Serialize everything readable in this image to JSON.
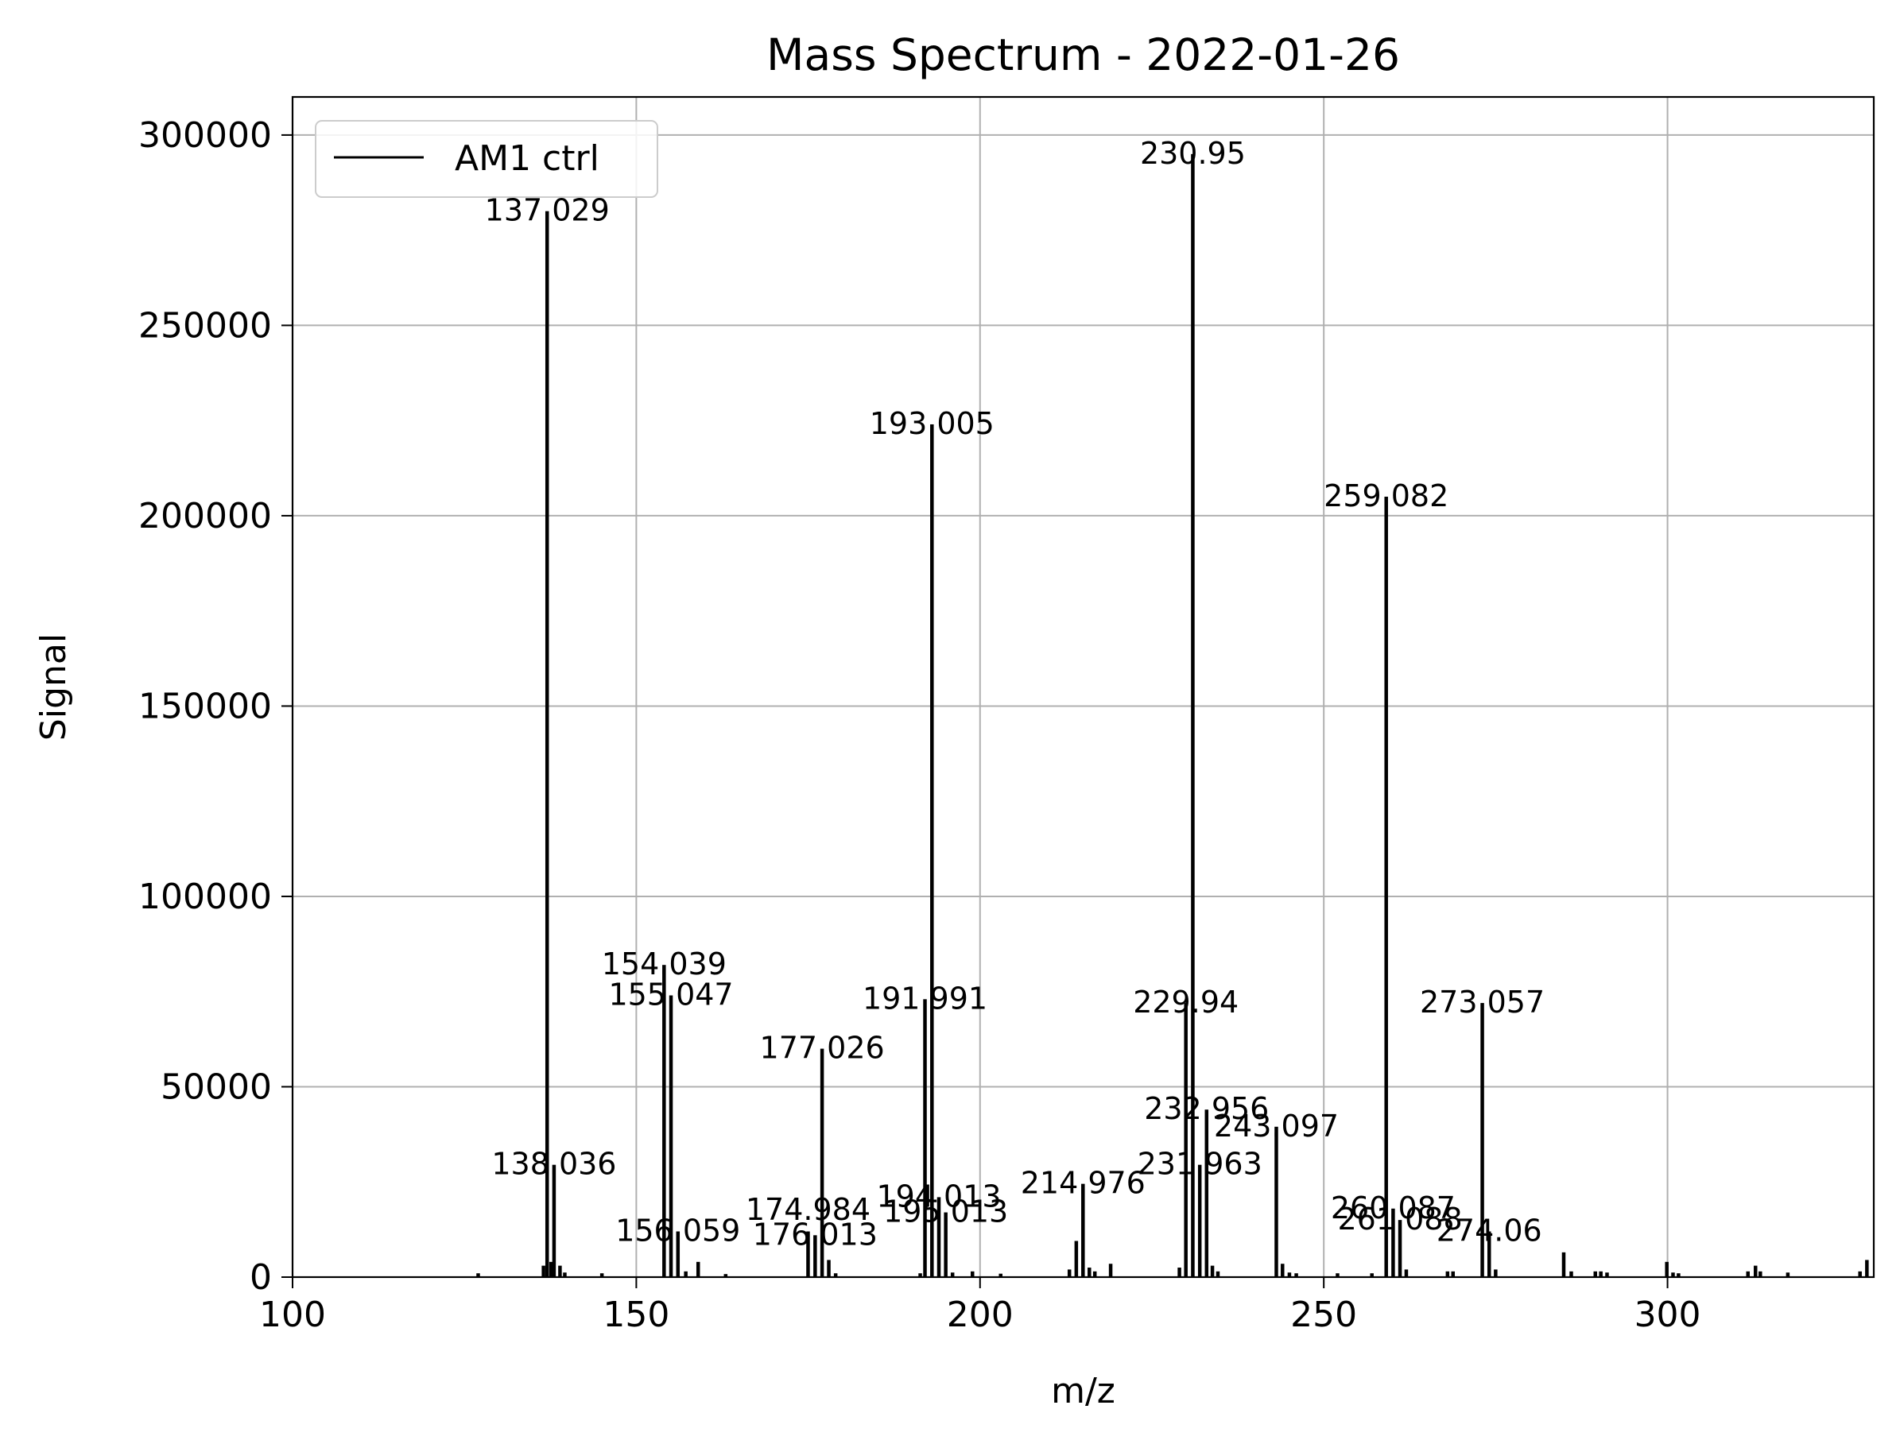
{
  "chart_data": {
    "type": "bar",
    "title": "Mass Spectrum - 2022-01-26",
    "xlabel": "m/z",
    "ylabel": "Signal",
    "xlim": [
      100,
      330
    ],
    "ylim": [
      0,
      310000
    ],
    "xticks": [
      100,
      150,
      200,
      250,
      300
    ],
    "yticks": [
      0,
      50000,
      100000,
      150000,
      200000,
      250000,
      300000
    ],
    "grid": true,
    "legend_position": "top-left",
    "series": [
      {
        "name": "AM1 ctrl",
        "color": "#000000",
        "peaks": [
          [
            127.0,
            1000
          ],
          [
            136.5,
            3000
          ],
          [
            137.029,
            280000
          ],
          [
            137.6,
            4000
          ],
          [
            138.036,
            29500
          ],
          [
            138.9,
            3000
          ],
          [
            139.6,
            1200
          ],
          [
            145.0,
            1000
          ],
          [
            154.039,
            82000
          ],
          [
            155.047,
            74000
          ],
          [
            156.059,
            12000
          ],
          [
            157.2,
            1500
          ],
          [
            159.0,
            4000
          ],
          [
            163.0,
            800
          ],
          [
            174.984,
            12000
          ],
          [
            176.013,
            11000
          ],
          [
            177.026,
            60000
          ],
          [
            178.0,
            4500
          ],
          [
            179.0,
            1000
          ],
          [
            191.3,
            1000
          ],
          [
            191.991,
            73000
          ],
          [
            193.005,
            224000
          ],
          [
            194.013,
            21000
          ],
          [
            195.013,
            17000
          ],
          [
            196.0,
            1200
          ],
          [
            198.9,
            1500
          ],
          [
            203.0,
            900
          ],
          [
            213.0,
            2000
          ],
          [
            214.0,
            9500
          ],
          [
            214.976,
            24500
          ],
          [
            215.9,
            2500
          ],
          [
            216.7,
            1500
          ],
          [
            219.0,
            3500
          ],
          [
            229.0,
            2500
          ],
          [
            229.94,
            72000
          ],
          [
            230.95,
            295000
          ],
          [
            231.963,
            29500
          ],
          [
            232.956,
            44000
          ],
          [
            233.8,
            3000
          ],
          [
            234.6,
            1500
          ],
          [
            243.097,
            39500
          ],
          [
            244.0,
            3500
          ],
          [
            245.0,
            1200
          ],
          [
            246.0,
            1000
          ],
          [
            252.0,
            1000
          ],
          [
            257.0,
            1000
          ],
          [
            259.082,
            205000
          ],
          [
            260.087,
            18000
          ],
          [
            261.088,
            15000
          ],
          [
            262.0,
            2000
          ],
          [
            268.0,
            1500
          ],
          [
            268.8,
            1500
          ],
          [
            273.057,
            72000
          ],
          [
            274.06,
            12000
          ],
          [
            275.0,
            2000
          ],
          [
            284.9,
            6500
          ],
          [
            286.0,
            1500
          ],
          [
            289.5,
            1500
          ],
          [
            290.3,
            1500
          ],
          [
            291.2,
            1200
          ],
          [
            299.9,
            4000
          ],
          [
            300.8,
            1200
          ],
          [
            301.6,
            1000
          ],
          [
            311.7,
            1500
          ],
          [
            312.8,
            3000
          ],
          [
            313.5,
            1500
          ],
          [
            317.5,
            1200
          ],
          [
            328.0,
            1500
          ],
          [
            329.0,
            4500
          ]
        ]
      }
    ],
    "annotations": [
      {
        "label": "137.029",
        "x": 137.029,
        "y": 280000
      },
      {
        "label": "138.036",
        "x": 138.036,
        "y": 29500
      },
      {
        "label": "154.039",
        "x": 154.039,
        "y": 82000
      },
      {
        "label": "155.047",
        "x": 155.047,
        "y": 74000
      },
      {
        "label": "156.059",
        "x": 156.059,
        "y": 12000
      },
      {
        "label": "174.984",
        "x": 174.984,
        "y": 17500
      },
      {
        "label": "176.013",
        "x": 176.013,
        "y": 11000
      },
      {
        "label": "177.026",
        "x": 177.026,
        "y": 60000
      },
      {
        "label": "191.991",
        "x": 191.991,
        "y": 73000
      },
      {
        "label": "193.005",
        "x": 193.005,
        "y": 224000
      },
      {
        "label": "194.013",
        "x": 194.013,
        "y": 21000
      },
      {
        "label": "195.013",
        "x": 195.013,
        "y": 17000
      },
      {
        "label": "214.976",
        "x": 214.976,
        "y": 24500
      },
      {
        "label": "229.94",
        "x": 229.94,
        "y": 72000
      },
      {
        "label": "230.95",
        "x": 230.95,
        "y": 295000
      },
      {
        "label": "231.963",
        "x": 231.963,
        "y": 29500
      },
      {
        "label": "232.956",
        "x": 232.956,
        "y": 44000
      },
      {
        "label": "243.097",
        "x": 243.097,
        "y": 39500
      },
      {
        "label": "259.082",
        "x": 259.082,
        "y": 205000
      },
      {
        "label": "260.087",
        "x": 260.087,
        "y": 18000
      },
      {
        "label": "261.088",
        "x": 261.088,
        "y": 15000
      },
      {
        "label": "273.057",
        "x": 273.057,
        "y": 72000
      },
      {
        "label": "274.06",
        "x": 274.06,
        "y": 12000
      }
    ]
  }
}
